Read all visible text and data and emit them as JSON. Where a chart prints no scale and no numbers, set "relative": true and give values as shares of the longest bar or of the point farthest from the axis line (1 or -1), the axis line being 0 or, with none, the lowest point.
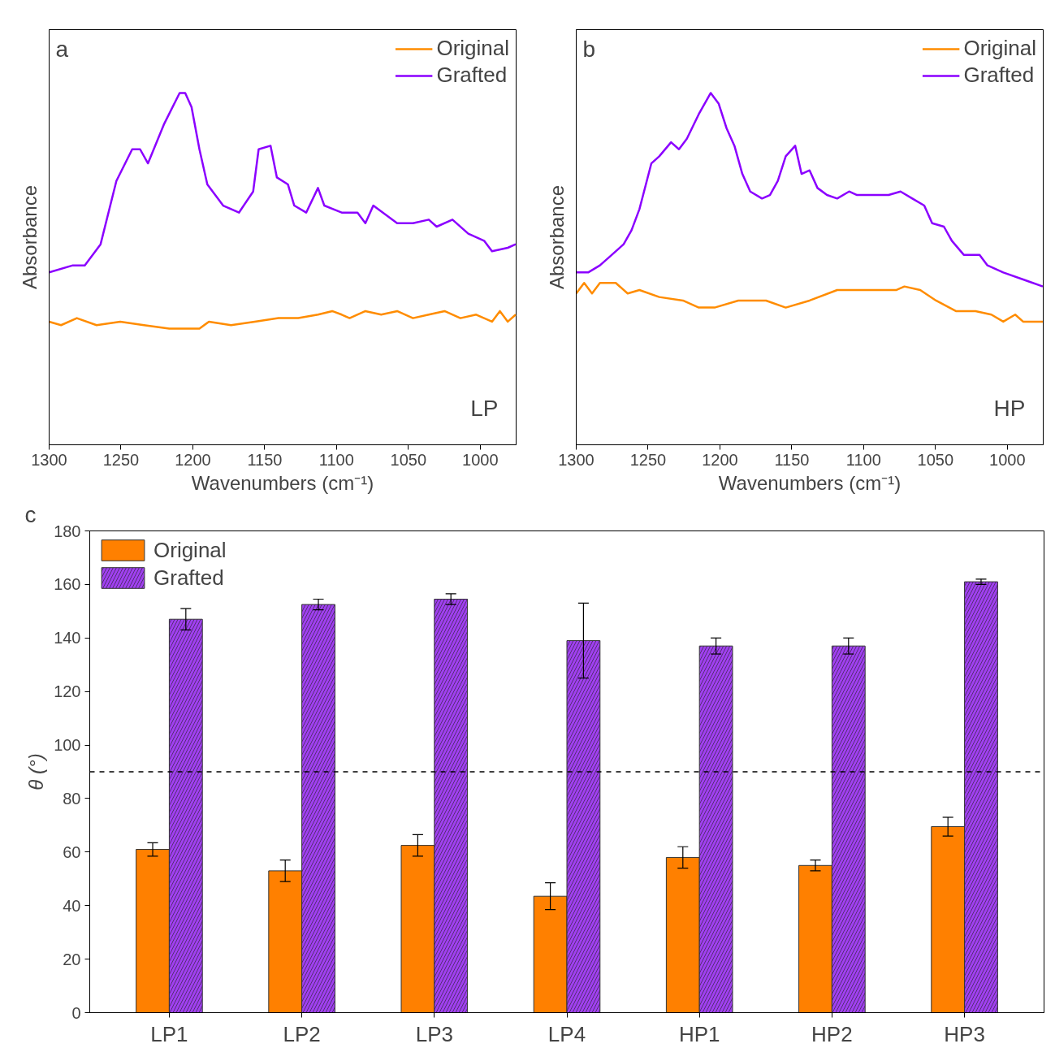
{
  "chart_data": [
    {
      "type": "line",
      "relative": true,
      "xlabel": "Wavenumbers (cm⁻¹)",
      "ylabel": "Absorbance",
      "xlim": [
        1300,
        975
      ],
      "xticks": [
        1300,
        1250,
        1200,
        1150,
        1100,
        1050,
        1000
      ],
      "legend": "top right",
      "grid": false,
      "annotations": [
        "a",
        "LP"
      ],
      "series": [
        {
          "name": "Original",
          "color": "#ff8c00",
          "x": [
            1300,
            1291.7,
            1280.7,
            1267,
            1250.5,
            1234,
            1216.4,
            1206.4,
            1195.4,
            1188.8,
            1173.4,
            1156.9,
            1140.4,
            1126.6,
            1112.9,
            1103,
            1096.4,
            1090.9,
            1079.9,
            1068.9,
            1057.8,
            1046.8,
            1035.8,
            1024.8,
            1013.8,
            1002.8,
            991.8,
            986.3,
            980.8,
            975.3
          ],
          "values": [
            0.35,
            0.34,
            0.36,
            0.34,
            0.35,
            0.34,
            0.33,
            0.33,
            0.33,
            0.35,
            0.34,
            0.35,
            0.36,
            0.36,
            0.37,
            0.38,
            0.37,
            0.36,
            0.38,
            0.37,
            0.38,
            0.36,
            0.37,
            0.38,
            0.36,
            0.37,
            0.35,
            0.38,
            0.35,
            0.37
          ]
        },
        {
          "name": "Grafted",
          "color": "#8b00ff",
          "x": [
            1300,
            1283.5,
            1275.2,
            1264.2,
            1253.2,
            1242.2,
            1236.7,
            1231.2,
            1220.2,
            1209.2,
            1205.3,
            1200.9,
            1195.4,
            1189.9,
            1178.9,
            1167.9,
            1158,
            1154.2,
            1145.9,
            1141.5,
            1133.8,
            1129.4,
            1121.1,
            1112.9,
            1108.5,
            1096.4,
            1085.4,
            1079.9,
            1074.4,
            1057.8,
            1046.8,
            1035.8,
            1030.3,
            1019.3,
            1008.3,
            997.3,
            991.8,
            980.8,
            975.3
          ],
          "values": [
            0.49,
            0.51,
            0.51,
            0.57,
            0.75,
            0.84,
            0.84,
            0.8,
            0.91,
            1.0,
            1.0,
            0.96,
            0.84,
            0.74,
            0.68,
            0.66,
            0.72,
            0.84,
            0.85,
            0.76,
            0.74,
            0.68,
            0.66,
            0.73,
            0.68,
            0.66,
            0.66,
            0.63,
            0.68,
            0.63,
            0.63,
            0.64,
            0.62,
            0.64,
            0.6,
            0.58,
            0.55,
            0.56,
            0.57
          ]
        }
      ]
    },
    {
      "type": "line",
      "relative": true,
      "xlabel": "Wavenumbers (cm⁻¹)",
      "ylabel": "Absorbance",
      "xlim": [
        1300,
        975
      ],
      "xticks": [
        1300,
        1250,
        1200,
        1150,
        1100,
        1050,
        1000
      ],
      "legend": "top right",
      "grid": false,
      "annotations": [
        "b",
        "HP"
      ],
      "series": [
        {
          "name": "Original",
          "color": "#ff8c00",
          "x": [
            1300,
            1294.5,
            1289,
            1283.5,
            1272.5,
            1264.2,
            1256,
            1242.2,
            1225.7,
            1214.7,
            1203.7,
            1187.2,
            1167.9,
            1154.2,
            1137.6,
            1118.4,
            1107.4,
            1090.9,
            1077.1,
            1071.6,
            1060.6,
            1049.6,
            1035.8,
            1022.1,
            1011.1,
            1002.8,
            994.5,
            989,
            975.3
          ],
          "values": [
            0.43,
            0.46,
            0.43,
            0.46,
            0.46,
            0.43,
            0.44,
            0.42,
            0.41,
            0.39,
            0.39,
            0.41,
            0.41,
            0.39,
            0.41,
            0.44,
            0.44,
            0.44,
            0.44,
            0.45,
            0.44,
            0.41,
            0.38,
            0.38,
            0.37,
            0.35,
            0.37,
            0.35,
            0.35
          ]
        },
        {
          "name": "Grafted",
          "color": "#8b00ff",
          "x": [
            1300,
            1291.7,
            1283.5,
            1275.2,
            1267,
            1261.5,
            1256,
            1247.7,
            1242.2,
            1234,
            1228.5,
            1223,
            1214.7,
            1206.4,
            1200.9,
            1195.4,
            1189.9,
            1184.4,
            1178.9,
            1170.7,
            1165.2,
            1159.7,
            1154.2,
            1147.6,
            1143.2,
            1137.6,
            1132.1,
            1125.5,
            1118.4,
            1110.1,
            1104.6,
            1093.6,
            1082.6,
            1074.3,
            1066.1,
            1057.8,
            1052.3,
            1044.1,
            1038.6,
            1030.3,
            1019.3,
            1013.8,
            1002.8,
            989,
            975.3
          ],
          "values": [
            0.49,
            0.49,
            0.51,
            0.54,
            0.57,
            0.61,
            0.67,
            0.8,
            0.82,
            0.86,
            0.84,
            0.87,
            0.94,
            1.0,
            0.97,
            0.9,
            0.85,
            0.77,
            0.72,
            0.7,
            0.71,
            0.75,
            0.82,
            0.85,
            0.77,
            0.78,
            0.73,
            0.71,
            0.7,
            0.72,
            0.71,
            0.71,
            0.71,
            0.72,
            0.7,
            0.68,
            0.63,
            0.62,
            0.58,
            0.54,
            0.54,
            0.51,
            0.49,
            0.47,
            0.45
          ]
        }
      ]
    },
    {
      "type": "bar",
      "ylabel": "θ (°)",
      "categories": [
        "LP1",
        "LP2",
        "LP3",
        "LP4",
        "HP1",
        "HP2",
        "HP3"
      ],
      "ylim": [
        0,
        180
      ],
      "yticks": [
        0,
        20,
        40,
        60,
        80,
        100,
        120,
        140,
        160,
        180
      ],
      "legend": "top left",
      "grid": false,
      "annotations": [
        "c"
      ],
      "ref_lines": [
        {
          "axis": "y",
          "value": 90,
          "label": null,
          "color": "#000000",
          "line_style": "dashed"
        }
      ],
      "series": [
        {
          "name": "Original",
          "color": "#ff8000",
          "values": [
            61,
            53,
            62.5,
            43.5,
            58,
            55,
            69.5
          ],
          "errors": [
            2.5,
            4,
            4,
            5,
            4,
            2,
            3.5
          ]
        },
        {
          "name": "Grafted",
          "color": "#a040f0",
          "values": [
            147,
            152.5,
            154.5,
            139,
            137,
            137,
            161
          ],
          "errors": [
            4,
            2,
            2,
            14,
            3,
            3,
            1
          ]
        }
      ]
    }
  ]
}
